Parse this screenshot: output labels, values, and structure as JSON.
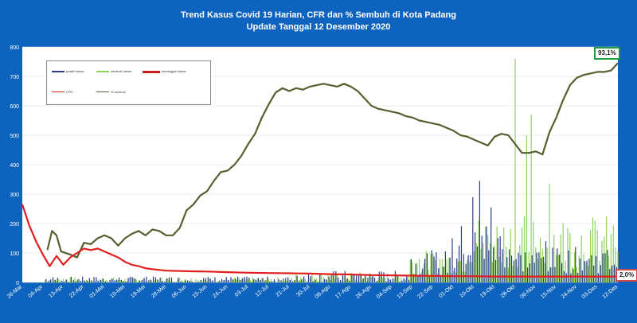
{
  "title": "Trend Kasus Covid 19 Harian, CFR dan % Sembuh di Kota Padang",
  "subtitle": "Update Tanggal 12 Desember  2020",
  "legend": {
    "positif": "positif harian",
    "sembuh": "sembuh harian",
    "meninggal": "meninggal harian",
    "cfr": "CFR",
    "pct_sembuh": "% sembuh"
  },
  "badges": {
    "top": "93,1%",
    "bottom": "2,0%"
  },
  "colors": {
    "positif": "#2b3f86",
    "sembuh": "#8fd15e",
    "meninggal": "#c81e1e",
    "pct_sembuh": "#55612f",
    "cfr": "#e02020",
    "plot_bg": "#ffffff",
    "grid": "#d9d9d9",
    "axis_text": "#ffffff"
  },
  "chart_data": {
    "type": "line",
    "ylim": [
      0,
      800
    ],
    "yticks": [
      0,
      100,
      200,
      300,
      400,
      500,
      600,
      700,
      800
    ],
    "x_start_date": "2020-03-26",
    "x_end_date": "2020-12-12",
    "xtick_labels": [
      "26-Mar",
      "04-Apr",
      "13-Apr",
      "22-Apr",
      "01-Mei",
      "10-Mei",
      "19-Mei",
      "28-Mei",
      "06-Jun",
      "15-Jun",
      "24-Jun",
      "03-Jul",
      "12-Jul",
      "21-Jul",
      "30-Jul",
      "08-Agu",
      "17-Agu",
      "26-Agu",
      "04-Sep",
      "13-Sep",
      "22-Sep",
      "01-Okt",
      "10-Okt",
      "19-Okt",
      "28-Okt",
      "06-Nov",
      "15-Nov",
      "24-Nov",
      "03-Des",
      "12-Des"
    ],
    "series": [
      {
        "name": "% sembuh",
        "points": [
          [
            "2020-04-06",
            110
          ],
          [
            "2020-04-08",
            175
          ],
          [
            "2020-04-10",
            160
          ],
          [
            "2020-04-12",
            105
          ],
          [
            "2020-04-16",
            95
          ],
          [
            "2020-04-19",
            85
          ],
          [
            "2020-04-22",
            135
          ],
          [
            "2020-04-25",
            130
          ],
          [
            "2020-04-28",
            150
          ],
          [
            "2020-05-01",
            160
          ],
          [
            "2020-05-04",
            150
          ],
          [
            "2020-05-07",
            125
          ],
          [
            "2020-05-10",
            150
          ],
          [
            "2020-05-13",
            165
          ],
          [
            "2020-05-16",
            175
          ],
          [
            "2020-05-19",
            160
          ],
          [
            "2020-05-22",
            180
          ],
          [
            "2020-05-25",
            175
          ],
          [
            "2020-05-28",
            160
          ],
          [
            "2020-05-31",
            160
          ],
          [
            "2020-06-03",
            185
          ],
          [
            "2020-06-06",
            245
          ],
          [
            "2020-06-09",
            265
          ],
          [
            "2020-06-12",
            295
          ],
          [
            "2020-06-15",
            310
          ],
          [
            "2020-06-18",
            345
          ],
          [
            "2020-06-21",
            375
          ],
          [
            "2020-06-24",
            380
          ],
          [
            "2020-06-27",
            400
          ],
          [
            "2020-06-30",
            430
          ],
          [
            "2020-07-03",
            470
          ],
          [
            "2020-07-06",
            505
          ],
          [
            "2020-07-09",
            560
          ],
          [
            "2020-07-12",
            605
          ],
          [
            "2020-07-15",
            645
          ],
          [
            "2020-07-18",
            660
          ],
          [
            "2020-07-21",
            650
          ],
          [
            "2020-07-24",
            660
          ],
          [
            "2020-07-27",
            655
          ],
          [
            "2020-07-30",
            665
          ],
          [
            "2020-08-02",
            670
          ],
          [
            "2020-08-05",
            675
          ],
          [
            "2020-08-08",
            670
          ],
          [
            "2020-08-11",
            665
          ],
          [
            "2020-08-14",
            675
          ],
          [
            "2020-08-17",
            665
          ],
          [
            "2020-08-20",
            650
          ],
          [
            "2020-08-23",
            625
          ],
          [
            "2020-08-26",
            600
          ],
          [
            "2020-08-29",
            590
          ],
          [
            "2020-09-01",
            585
          ],
          [
            "2020-09-04",
            580
          ],
          [
            "2020-09-07",
            575
          ],
          [
            "2020-09-10",
            565
          ],
          [
            "2020-09-13",
            560
          ],
          [
            "2020-09-16",
            550
          ],
          [
            "2020-09-19",
            545
          ],
          [
            "2020-09-22",
            540
          ],
          [
            "2020-09-25",
            535
          ],
          [
            "2020-09-28",
            525
          ],
          [
            "2020-10-01",
            515
          ],
          [
            "2020-10-04",
            500
          ],
          [
            "2020-10-07",
            495
          ],
          [
            "2020-10-10",
            485
          ],
          [
            "2020-10-13",
            475
          ],
          [
            "2020-10-16",
            465
          ],
          [
            "2020-10-19",
            495
          ],
          [
            "2020-10-22",
            505
          ],
          [
            "2020-10-25",
            500
          ],
          [
            "2020-10-28",
            470
          ],
          [
            "2020-10-31",
            440
          ],
          [
            "2020-11-03",
            440
          ],
          [
            "2020-11-06",
            445
          ],
          [
            "2020-11-09",
            435
          ],
          [
            "2020-11-12",
            510
          ],
          [
            "2020-11-15",
            560
          ],
          [
            "2020-11-18",
            620
          ],
          [
            "2020-11-21",
            670
          ],
          [
            "2020-11-24",
            695
          ],
          [
            "2020-11-27",
            705
          ],
          [
            "2020-11-30",
            710
          ],
          [
            "2020-12-03",
            715
          ],
          [
            "2020-12-06",
            715
          ],
          [
            "2020-12-09",
            720
          ],
          [
            "2020-12-12",
            745
          ]
        ]
      },
      {
        "name": "CFR",
        "points": [
          [
            "2020-03-26",
            265
          ],
          [
            "2020-03-29",
            195
          ],
          [
            "2020-04-01",
            140
          ],
          [
            "2020-04-04",
            95
          ],
          [
            "2020-04-07",
            55
          ],
          [
            "2020-04-10",
            90
          ],
          [
            "2020-04-13",
            60
          ],
          [
            "2020-04-16",
            85
          ],
          [
            "2020-04-19",
            100
          ],
          [
            "2020-04-22",
            115
          ],
          [
            "2020-04-25",
            110
          ],
          [
            "2020-04-28",
            115
          ],
          [
            "2020-05-01",
            105
          ],
          [
            "2020-05-04",
            95
          ],
          [
            "2020-05-07",
            85
          ],
          [
            "2020-05-10",
            70
          ],
          [
            "2020-05-13",
            60
          ],
          [
            "2020-05-16",
            55
          ],
          [
            "2020-05-19",
            48
          ],
          [
            "2020-05-22",
            45
          ],
          [
            "2020-05-28",
            40
          ],
          [
            "2020-06-06",
            38
          ],
          [
            "2020-06-15",
            37
          ],
          [
            "2020-06-24",
            35
          ],
          [
            "2020-07-03",
            33
          ],
          [
            "2020-07-12",
            32
          ],
          [
            "2020-07-21",
            31
          ],
          [
            "2020-07-30",
            30
          ],
          [
            "2020-08-08",
            28
          ],
          [
            "2020-08-17",
            27
          ],
          [
            "2020-08-26",
            25
          ],
          [
            "2020-09-04",
            24
          ],
          [
            "2020-09-13",
            23
          ],
          [
            "2020-09-22",
            22
          ],
          [
            "2020-10-01",
            21
          ],
          [
            "2020-10-10",
            21
          ],
          [
            "2020-10-19",
            20
          ],
          [
            "2020-10-28",
            20
          ],
          [
            "2020-11-06",
            20
          ],
          [
            "2020-11-15",
            20
          ],
          [
            "2020-11-24",
            20
          ],
          [
            "2020-12-03",
            20
          ],
          [
            "2020-12-12",
            20
          ]
        ]
      }
    ]
  }
}
